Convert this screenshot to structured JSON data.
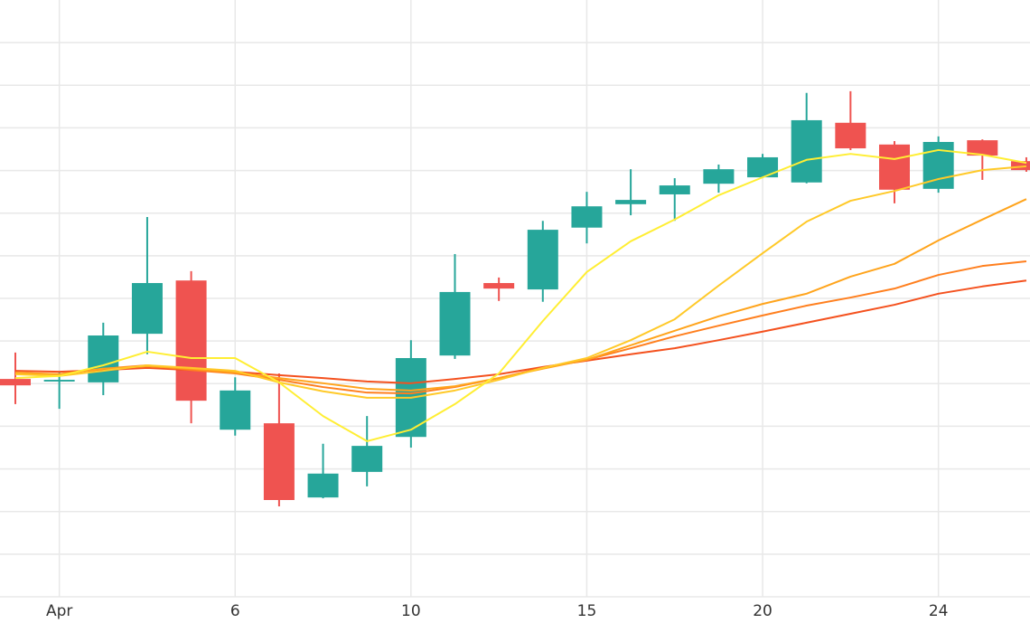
{
  "chart_data": {
    "type": "candlestick",
    "categories": [
      null,
      "Apr",
      null,
      null,
      null,
      "6",
      null,
      null,
      null,
      "10",
      null,
      null,
      null,
      "15",
      null,
      null,
      null,
      "20",
      null,
      null,
      null,
      "24",
      null,
      null
    ],
    "open": [
      5.11,
      5.05,
      5.03,
      6.17,
      7.42,
      3.92,
      4.07,
      2.33,
      2.93,
      3.75,
      5.66,
      7.36,
      7.21,
      8.66,
      9.21,
      9.44,
      9.69,
      9.84,
      9.72,
      11.12,
      10.61,
      9.57,
      10.71,
      10.22
    ],
    "high": [
      5.73,
      5.28,
      6.43,
      8.91,
      7.64,
      5.15,
      5.24,
      3.59,
      4.24,
      6.02,
      8.04,
      7.49,
      8.82,
      9.5,
      10.03,
      9.82,
      10.14,
      10.39,
      11.82,
      11.86,
      10.69,
      10.8,
      10.73,
      10.31
    ],
    "low": [
      4.52,
      4.41,
      4.73,
      5.69,
      4.07,
      3.78,
      2.12,
      2.31,
      2.59,
      3.5,
      5.58,
      6.94,
      6.92,
      8.29,
      8.95,
      8.82,
      9.48,
      9.82,
      9.7,
      10.48,
      9.23,
      9.48,
      9.78,
      9.97
    ],
    "close": [
      4.96,
      5.09,
      6.13,
      7.36,
      4.6,
      4.84,
      2.27,
      2.89,
      3.54,
      5.6,
      7.15,
      7.23,
      8.61,
      9.16,
      9.31,
      9.65,
      10.03,
      10.31,
      11.18,
      10.52,
      9.55,
      10.67,
      10.35,
      10.01
    ],
    "increasing_color": "#26a69a",
    "decreasing_color": "#ef5350",
    "series": [
      {
        "color": "#f4511e",
        "values": [
          5.3,
          5.28,
          5.32,
          5.37,
          5.32,
          5.28,
          5.2,
          5.13,
          5.05,
          5.01,
          5.11,
          5.22,
          5.39,
          5.54,
          5.69,
          5.83,
          6.02,
          6.22,
          6.43,
          6.64,
          6.85,
          7.11,
          7.28,
          7.42
        ]
      },
      {
        "color": "#ff7f1e",
        "values": [
          5.24,
          5.22,
          5.35,
          5.43,
          5.32,
          5.24,
          5.09,
          4.92,
          4.79,
          4.77,
          4.92,
          5.13,
          5.37,
          5.56,
          5.83,
          6.11,
          6.36,
          6.6,
          6.83,
          7.02,
          7.23,
          7.55,
          7.76,
          7.87
        ]
      },
      {
        "color": "#ffa41c",
        "values": [
          5.26,
          5.22,
          5.35,
          5.41,
          5.35,
          5.26,
          5.13,
          5.01,
          4.88,
          4.84,
          4.94,
          5.13,
          5.35,
          5.56,
          5.9,
          6.24,
          6.58,
          6.87,
          7.11,
          7.51,
          7.81,
          8.36,
          8.85,
          9.33
        ]
      },
      {
        "color": "#ffc928",
        "values": [
          5.22,
          5.18,
          5.3,
          5.43,
          5.37,
          5.3,
          5.03,
          4.82,
          4.67,
          4.67,
          4.84,
          5.09,
          5.37,
          5.6,
          6.02,
          6.51,
          7.3,
          8.06,
          8.8,
          9.29,
          9.52,
          9.8,
          10.01,
          10.1
        ]
      },
      {
        "color": "#ffee33",
        "values": [
          5.13,
          5.18,
          5.43,
          5.75,
          5.6,
          5.6,
          5.03,
          4.24,
          3.65,
          3.92,
          4.52,
          5.24,
          6.47,
          7.62,
          8.34,
          8.85,
          9.42,
          9.84,
          10.25,
          10.39,
          10.27,
          10.48,
          10.37,
          10.18
        ]
      }
    ],
    "ylim": [
      0,
      14
    ],
    "yticks": [
      0,
      1,
      2,
      3,
      4,
      5,
      6,
      7,
      8,
      9,
      10,
      11,
      12,
      13
    ],
    "grid": true
  }
}
